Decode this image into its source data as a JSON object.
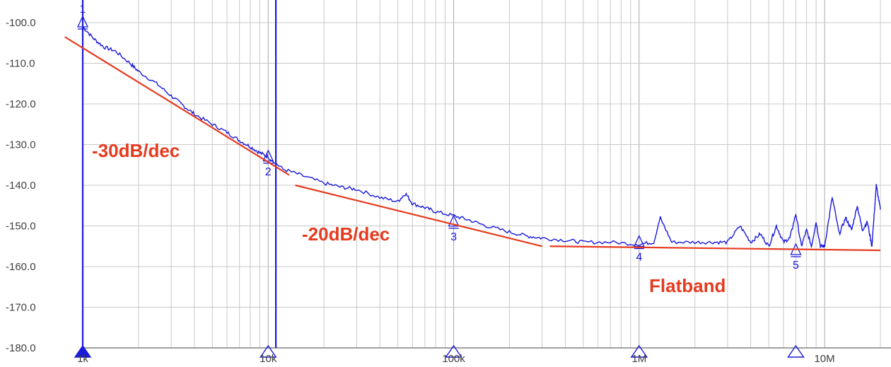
{
  "chart_data": {
    "type": "line",
    "title": "",
    "xlabel": "",
    "ylabel": "",
    "x_scale": "log",
    "xlim": [
      1000,
      20000000
    ],
    "ylim": [
      -180,
      -98
    ],
    "y_ticks": [
      {
        "value": -100,
        "label": "-100.0"
      },
      {
        "value": -110,
        "label": "-110.0"
      },
      {
        "value": -120,
        "label": "-120.0"
      },
      {
        "value": -130,
        "label": "-130.0"
      },
      {
        "value": -140,
        "label": "-140.0"
      },
      {
        "value": -150,
        "label": "-150.0"
      },
      {
        "value": -160,
        "label": "-160.0"
      },
      {
        "value": -170,
        "label": "-170.0"
      },
      {
        "value": -180,
        "label": "-180.0"
      }
    ],
    "x_ticks": [
      {
        "value": 1000,
        "label": "1k"
      },
      {
        "value": 10000,
        "label": "10k"
      },
      {
        "value": 100000,
        "label": "100k"
      },
      {
        "value": 1000000,
        "label": "1M"
      },
      {
        "value": 10000000,
        "label": "10M"
      }
    ],
    "grid": true,
    "colors": {
      "trace": "#1a1adb",
      "annotation": "#e53b1f",
      "grid": "#c8c8c8",
      "axis": "#808080"
    },
    "series": [
      {
        "x": [
          1000,
          1150,
          1300,
          1500,
          1800,
          2000,
          2500,
          3000,
          3500,
          4000,
          5000,
          6000,
          7000,
          8000,
          9000,
          10000,
          12000,
          15000,
          20000,
          25000,
          30000,
          40000,
          50000,
          55000,
          60000,
          70000,
          80000,
          100000,
          120000,
          150000,
          200000,
          250000,
          300000,
          400000,
          500000,
          700000,
          1000000,
          1200000,
          1300000,
          1500000,
          2000000,
          2500000,
          3000000,
          3500000,
          4000000,
          4500000,
          5000000,
          5500000,
          6000000,
          6500000,
          7000000,
          7500000,
          8000000,
          8500000,
          9000000,
          9500000,
          10000000,
          11000000,
          12000000,
          13000000,
          14000000,
          15000000,
          16000000,
          17000000,
          18000000,
          19000000,
          20000000
        ],
        "y": [
          -101,
          -104,
          -106,
          -107,
          -110,
          -112,
          -115,
          -118,
          -120.5,
          -122.5,
          -125,
          -127,
          -129,
          -130.5,
          -132,
          -133,
          -136,
          -137.5,
          -139.5,
          -140.5,
          -141,
          -143,
          -144,
          -142,
          -144.5,
          -145.5,
          -146.5,
          -147.5,
          -148.5,
          -150,
          -151.5,
          -152.5,
          -153,
          -153.5,
          -154,
          -154,
          -154.5,
          -154,
          -148,
          -154,
          -154,
          -154,
          -154,
          -150,
          -154,
          -152,
          -155,
          -150,
          -154,
          -153,
          -147,
          -155,
          -151,
          -155,
          -149,
          -155,
          -155,
          -143,
          -152,
          -148,
          -151,
          -145,
          -151,
          -149,
          -155,
          -140,
          -146
        ]
      }
    ],
    "markers": [
      {
        "id": "1",
        "x": 1000,
        "y": -100
      },
      {
        "id": "2",
        "x": 10000,
        "y": -133
      },
      {
        "id": "3",
        "x": 100000,
        "y": -149
      },
      {
        "id": "4",
        "x": 1000000,
        "y": -154
      },
      {
        "id": "5",
        "x": 7000000,
        "y": -156
      }
    ],
    "cursor_lines_x": [
      1000,
      11000
    ],
    "asymptotes": [
      {
        "label": "-30dB/dec",
        "x": [
          800,
          13000
        ],
        "y": [
          -103.5,
          -137.5
        ]
      },
      {
        "label": "-20dB/dec",
        "x": [
          14000,
          300000
        ],
        "y": [
          -140,
          -155
        ]
      },
      {
        "label": "Flatband",
        "x": [
          330000,
          20000000
        ],
        "y": [
          -155,
          -156
        ]
      }
    ],
    "annotations": [
      "-30dB/dec",
      "-20dB/dec",
      "Flatband"
    ]
  }
}
